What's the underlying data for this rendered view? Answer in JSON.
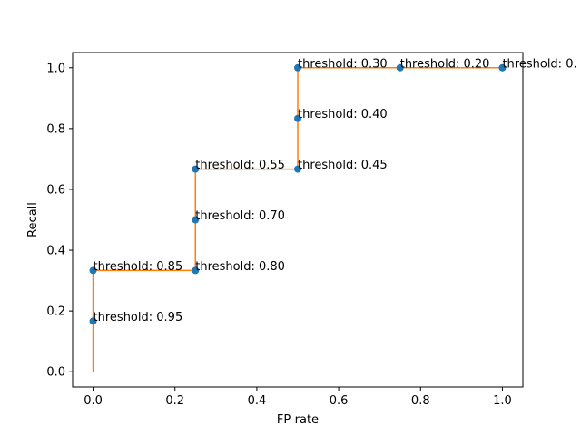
{
  "chart_data": {
    "type": "line",
    "xlabel": "FP-rate",
    "ylabel": "Recall",
    "xlim": [
      -0.05,
      1.05
    ],
    "ylim": [
      -0.05,
      1.05
    ],
    "xticks": [
      "0.0",
      "0.2",
      "0.4",
      "0.6",
      "0.8",
      "1.0"
    ],
    "yticks": [
      "0.0",
      "0.2",
      "0.4",
      "0.6",
      "0.8",
      "1.0"
    ],
    "xtick_values": [
      0.0,
      0.2,
      0.4,
      0.6,
      0.8,
      1.0
    ],
    "ytick_values": [
      0.0,
      0.2,
      0.4,
      0.6,
      0.8,
      1.0
    ],
    "grid": false,
    "series": [
      {
        "kind": "step",
        "color": "#ff7f0e",
        "x": [
          0.0,
          0.0,
          0.0,
          0.25,
          0.25,
          0.25,
          0.5,
          0.5,
          0.5,
          0.75,
          1.0
        ],
        "y": [
          0.0,
          0.1667,
          0.3333,
          0.3333,
          0.5,
          0.6667,
          0.6667,
          0.8333,
          1.0,
          1.0,
          1.0
        ]
      },
      {
        "kind": "scatter",
        "color": "#1f77b4",
        "x": [
          0.0,
          0.0,
          0.25,
          0.25,
          0.25,
          0.5,
          0.5,
          0.5,
          0.75,
          1.0
        ],
        "y": [
          0.1667,
          0.3333,
          0.3333,
          0.5,
          0.6667,
          0.6667,
          0.8333,
          1.0,
          1.0,
          1.0
        ]
      }
    ],
    "annotations": [
      {
        "text": "threshold: 0.95",
        "x": 0.0,
        "y": 0.1667
      },
      {
        "text": "threshold: 0.85",
        "x": 0.0,
        "y": 0.3333
      },
      {
        "text": "threshold: 0.80",
        "x": 0.25,
        "y": 0.3333
      },
      {
        "text": "threshold: 0.70",
        "x": 0.25,
        "y": 0.5
      },
      {
        "text": "threshold: 0.55",
        "x": 0.25,
        "y": 0.6667
      },
      {
        "text": "threshold: 0.45",
        "x": 0.5,
        "y": 0.6667
      },
      {
        "text": "threshold: 0.40",
        "x": 0.5,
        "y": 0.8333
      },
      {
        "text": "threshold: 0.30",
        "x": 0.5,
        "y": 1.0
      },
      {
        "text": "threshold: 0.20",
        "x": 0.75,
        "y": 1.0
      },
      {
        "text": "threshold: 0.",
        "x": 1.0,
        "y": 1.0
      }
    ]
  }
}
